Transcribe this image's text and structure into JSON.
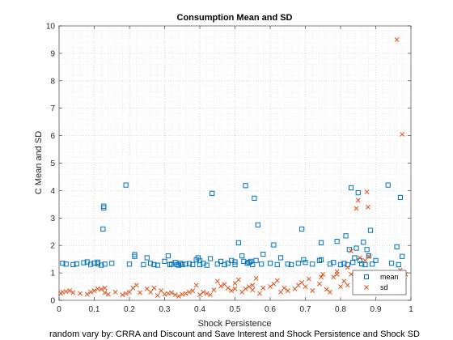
{
  "chart_data": {
    "type": "scatter",
    "title": "Consumption Mean and SD",
    "xlabel": "Shock Persistence",
    "ylabel": "C Mean and SD",
    "caption": "random vary by: CRRA and Discount and Save Interest and Shock Persistence and Shock SD",
    "xlim": [
      0,
      1
    ],
    "ylim": [
      0,
      10
    ],
    "x_ticks": [
      "0",
      "0.1",
      "0.2",
      "0.3",
      "0.4",
      "0.5",
      "0.6",
      "0.7",
      "0.8",
      "0.9",
      "1"
    ],
    "y_ticks": [
      "0",
      "1",
      "2",
      "3",
      "4",
      "5",
      "6",
      "7",
      "8",
      "9",
      "10"
    ],
    "grid": "on, dotted major and minor",
    "box": "on",
    "legend_position": "bottom-right",
    "series": [
      {
        "name": "mean",
        "marker": "square",
        "color": "#0072BD",
        "points": [
          [
            0.01,
            1.35
          ],
          [
            0.02,
            1.32
          ],
          [
            0.04,
            1.3
          ],
          [
            0.05,
            1.33
          ],
          [
            0.07,
            1.37
          ],
          [
            0.08,
            1.4
          ],
          [
            0.09,
            1.31
          ],
          [
            0.1,
            1.36
          ],
          [
            0.11,
            1.33
          ],
          [
            0.11,
            1.39
          ],
          [
            0.12,
            1.28
          ],
          [
            0.125,
            2.6
          ],
          [
            0.127,
            3.37
          ],
          [
            0.127,
            3.43
          ],
          [
            0.13,
            1.32
          ],
          [
            0.15,
            1.35
          ],
          [
            0.19,
            4.2
          ],
          [
            0.2,
            1.32
          ],
          [
            0.215,
            1.6
          ],
          [
            0.215,
            1.67
          ],
          [
            0.24,
            1.3
          ],
          [
            0.25,
            1.55
          ],
          [
            0.26,
            1.35
          ],
          [
            0.27,
            1.3
          ],
          [
            0.28,
            1.28
          ],
          [
            0.3,
            1.42
          ],
          [
            0.31,
            1.62
          ],
          [
            0.315,
            1.3
          ],
          [
            0.32,
            1.32
          ],
          [
            0.33,
            1.38
          ],
          [
            0.335,
            1.3
          ],
          [
            0.34,
            1.28
          ],
          [
            0.345,
            1.35
          ],
          [
            0.35,
            1.3
          ],
          [
            0.36,
            1.32
          ],
          [
            0.37,
            1.34
          ],
          [
            0.38,
            1.3
          ],
          [
            0.39,
            1.48
          ],
          [
            0.395,
            1.55
          ],
          [
            0.4,
            1.3
          ],
          [
            0.4,
            1.45
          ],
          [
            0.41,
            1.35
          ],
          [
            0.42,
            1.28
          ],
          [
            0.43,
            1.52
          ],
          [
            0.435,
            3.9
          ],
          [
            0.45,
            1.32
          ],
          [
            0.46,
            1.42
          ],
          [
            0.47,
            1.3
          ],
          [
            0.48,
            1.35
          ],
          [
            0.49,
            1.45
          ],
          [
            0.5,
            1.3
          ],
          [
            0.5,
            1.4
          ],
          [
            0.51,
            2.1
          ],
          [
            0.52,
            1.62
          ],
          [
            0.525,
            1.42
          ],
          [
            0.53,
            4.18
          ],
          [
            0.535,
            1.35
          ],
          [
            0.54,
            1.38
          ],
          [
            0.545,
            1.42
          ],
          [
            0.55,
            1.3
          ],
          [
            0.555,
            3.72
          ],
          [
            0.56,
            1.45
          ],
          [
            0.565,
            2.75
          ],
          [
            0.575,
            1.32
          ],
          [
            0.58,
            1.68
          ],
          [
            0.6,
            1.35
          ],
          [
            0.61,
            2.02
          ],
          [
            0.62,
            1.3
          ],
          [
            0.63,
            1.55
          ],
          [
            0.65,
            1.32
          ],
          [
            0.66,
            1.3
          ],
          [
            0.68,
            1.35
          ],
          [
            0.69,
            2.6
          ],
          [
            0.695,
            1.48
          ],
          [
            0.7,
            1.38
          ],
          [
            0.72,
            1.32
          ],
          [
            0.74,
            1.45
          ],
          [
            0.745,
            1.48
          ],
          [
            0.745,
            2.1
          ],
          [
            0.77,
            1.32
          ],
          [
            0.78,
            1.38
          ],
          [
            0.79,
            2.15
          ],
          [
            0.8,
            1.3
          ],
          [
            0.81,
            1.35
          ],
          [
            0.815,
            2.35
          ],
          [
            0.82,
            1.3
          ],
          [
            0.825,
            1.85
          ],
          [
            0.83,
            4.1
          ],
          [
            0.835,
            1.38
          ],
          [
            0.84,
            1.55
          ],
          [
            0.845,
            1.9
          ],
          [
            0.85,
            3.92
          ],
          [
            0.855,
            1.45
          ],
          [
            0.86,
            1.33
          ],
          [
            0.865,
            2.12
          ],
          [
            0.87,
            1.3
          ],
          [
            0.875,
            1.85
          ],
          [
            0.88,
            1.62
          ],
          [
            0.885,
            2.55
          ],
          [
            0.89,
            1.32
          ],
          [
            0.9,
            1.45
          ],
          [
            0.935,
            4.2
          ],
          [
            0.945,
            1.35
          ],
          [
            0.96,
            1.95
          ],
          [
            0.965,
            1.3
          ],
          [
            0.97,
            3.75
          ],
          [
            0.975,
            1.6
          ]
        ]
      },
      {
        "name": "sd",
        "marker": "x",
        "color": "#D95319",
        "points": [
          [
            0.005,
            0.25
          ],
          [
            0.01,
            0.3
          ],
          [
            0.02,
            0.32
          ],
          [
            0.03,
            0.35
          ],
          [
            0.04,
            0.28
          ],
          [
            0.06,
            0.25
          ],
          [
            0.08,
            0.22
          ],
          [
            0.09,
            0.3
          ],
          [
            0.1,
            0.35
          ],
          [
            0.11,
            0.42
          ],
          [
            0.12,
            0.4
          ],
          [
            0.13,
            0.28
          ],
          [
            0.13,
            0.45
          ],
          [
            0.14,
            0.22
          ],
          [
            0.16,
            0.3
          ],
          [
            0.18,
            0.2
          ],
          [
            0.19,
            0.25
          ],
          [
            0.2,
            0.3
          ],
          [
            0.21,
            0.45
          ],
          [
            0.22,
            0.55
          ],
          [
            0.23,
            0.28
          ],
          [
            0.25,
            0.42
          ],
          [
            0.26,
            0.3
          ],
          [
            0.27,
            0.45
          ],
          [
            0.28,
            0.18
          ],
          [
            0.29,
            0.35
          ],
          [
            0.3,
            0.22
          ],
          [
            0.31,
            0.25
          ],
          [
            0.32,
            0.28
          ],
          [
            0.33,
            0.2
          ],
          [
            0.34,
            0.15
          ],
          [
            0.35,
            0.22
          ],
          [
            0.36,
            0.25
          ],
          [
            0.37,
            0.3
          ],
          [
            0.38,
            0.35
          ],
          [
            0.39,
            0.55
          ],
          [
            0.4,
            0.2
          ],
          [
            0.41,
            0.3
          ],
          [
            0.42,
            0.25
          ],
          [
            0.43,
            0.2
          ],
          [
            0.44,
            0.38
          ],
          [
            0.45,
            0.7
          ],
          [
            0.46,
            0.52
          ],
          [
            0.47,
            0.58
          ],
          [
            0.48,
            0.45
          ],
          [
            0.49,
            0.35
          ],
          [
            0.5,
            0.42
          ],
          [
            0.5,
            0.62
          ],
          [
            0.51,
            0.75
          ],
          [
            0.52,
            0.3
          ],
          [
            0.53,
            0.42
          ],
          [
            0.54,
            0.5
          ],
          [
            0.55,
            0.38
          ],
          [
            0.55,
            0.55
          ],
          [
            0.56,
            0.8
          ],
          [
            0.57,
            0.25
          ],
          [
            0.58,
            0.45
          ],
          [
            0.6,
            0.5
          ],
          [
            0.61,
            0.6
          ],
          [
            0.62,
            0.72
          ],
          [
            0.63,
            0.3
          ],
          [
            0.64,
            0.45
          ],
          [
            0.65,
            0.35
          ],
          [
            0.67,
            0.42
          ],
          [
            0.68,
            0.55
          ],
          [
            0.69,
            0.65
          ],
          [
            0.7,
            0.5
          ],
          [
            0.71,
            0.78
          ],
          [
            0.72,
            0.35
          ],
          [
            0.74,
            0.6
          ],
          [
            0.745,
            0.85
          ],
          [
            0.75,
            0.95
          ],
          [
            0.76,
            0.4
          ],
          [
            0.77,
            0.3
          ],
          [
            0.78,
            0.85
          ],
          [
            0.79,
            0.95
          ],
          [
            0.79,
            1.05
          ],
          [
            0.8,
            0.5
          ],
          [
            0.81,
            0.7
          ],
          [
            0.82,
            0.55
          ],
          [
            0.82,
            1.2
          ],
          [
            0.83,
            1.8
          ],
          [
            0.83,
            0.95
          ],
          [
            0.84,
            0.8
          ],
          [
            0.845,
            3.35
          ],
          [
            0.85,
            3.65
          ],
          [
            0.855,
            1.55
          ],
          [
            0.86,
            0.95
          ],
          [
            0.865,
            0.5
          ],
          [
            0.87,
            0.35
          ],
          [
            0.87,
            1.45
          ],
          [
            0.875,
            3.95
          ],
          [
            0.878,
            3.4
          ],
          [
            0.88,
            1.6
          ],
          [
            0.89,
            0.9
          ],
          [
            0.9,
            0.7
          ],
          [
            0.91,
            0.5
          ],
          [
            0.92,
            0.6
          ],
          [
            0.93,
            0.45
          ],
          [
            0.94,
            0.55
          ],
          [
            0.95,
            0.75
          ],
          [
            0.96,
            9.5
          ],
          [
            0.97,
            1.1
          ],
          [
            0.975,
            6.05
          ],
          [
            0.985,
            0.95
          ]
        ]
      }
    ]
  }
}
